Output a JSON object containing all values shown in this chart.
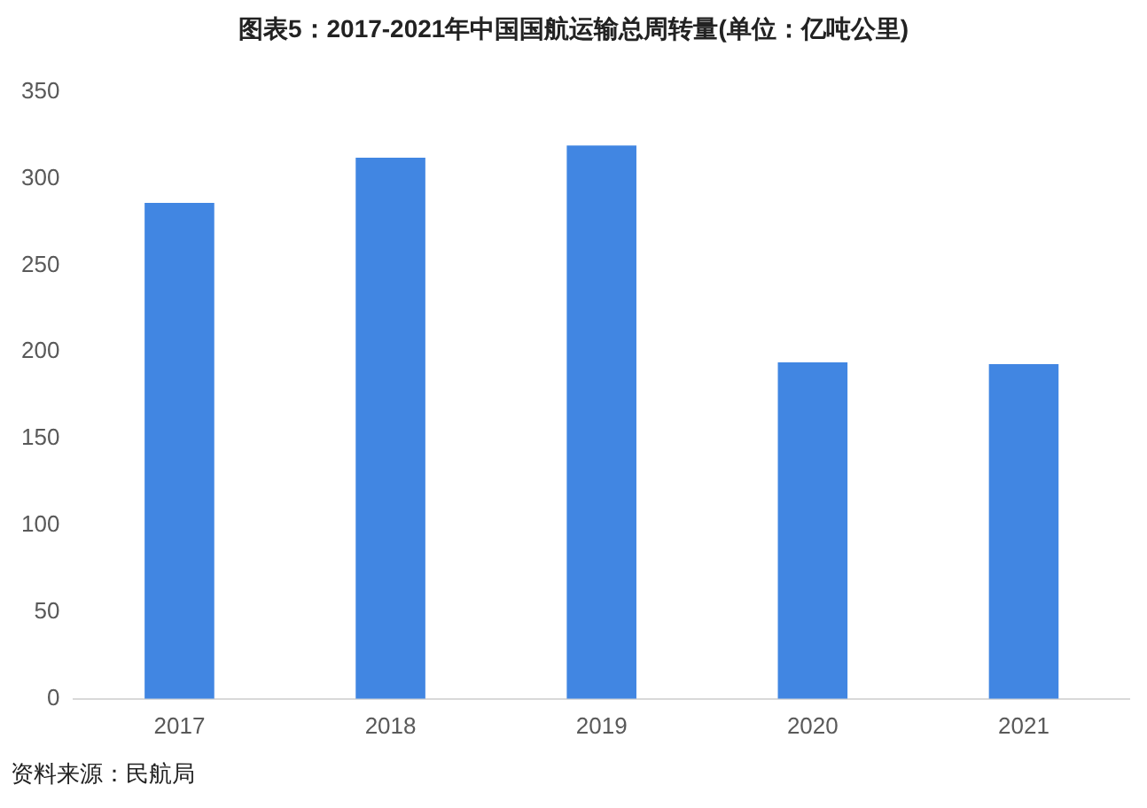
{
  "chart_data": {
    "type": "bar",
    "title": "图表5：2017-2021年中国国航运输总周转量(单位：亿吨公里)",
    "categories": [
      "2017",
      "2018",
      "2019",
      "2020",
      "2021"
    ],
    "values": [
      286,
      312,
      319,
      194,
      193
    ],
    "color": "#4186e2",
    "ylim": [
      0,
      350
    ],
    "yticks": [
      0,
      50,
      100,
      150,
      200,
      250,
      300,
      350
    ],
    "grid": false,
    "annotations": [
      "资料来源：民航局"
    ]
  }
}
